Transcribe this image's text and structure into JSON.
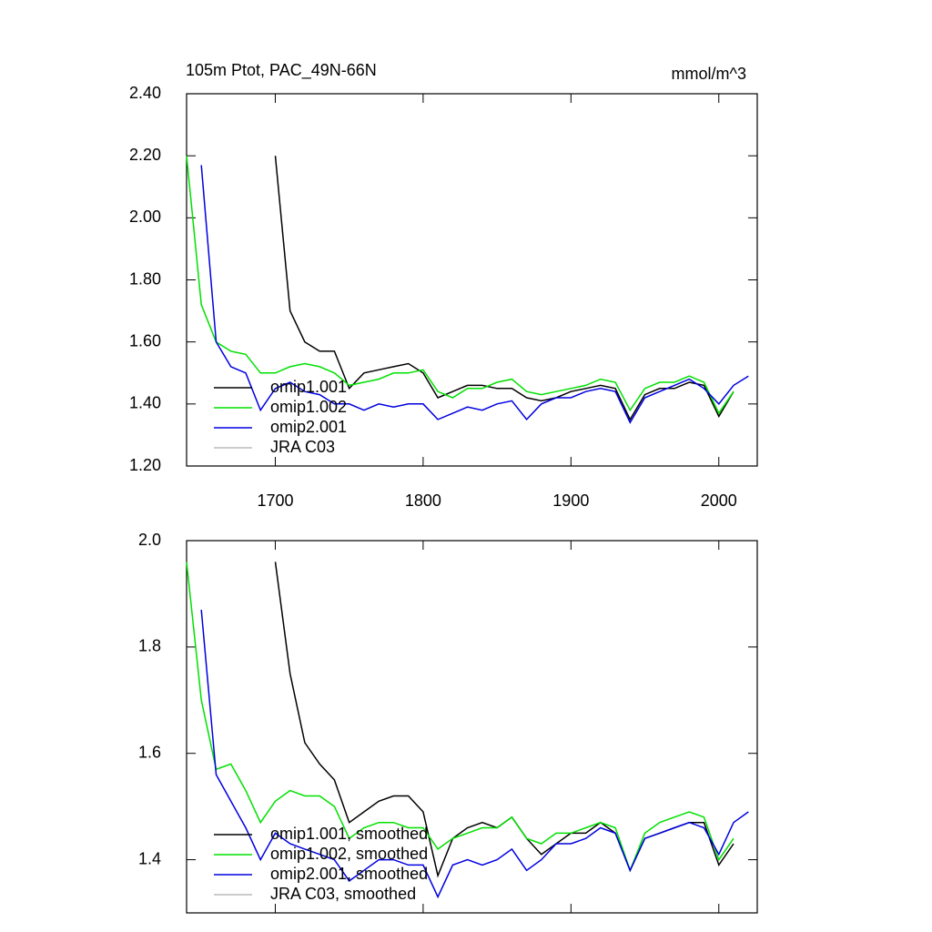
{
  "chart_data": [
    {
      "type": "line",
      "title": "105m Ptot, PAC_49N-66N",
      "y_units": "mmol/m^3",
      "x": [
        1640,
        1650,
        1660,
        1670,
        1680,
        1690,
        1700,
        1710,
        1720,
        1730,
        1740,
        1750,
        1760,
        1770,
        1780,
        1790,
        1800,
        1810,
        1820,
        1830,
        1840,
        1850,
        1860,
        1870,
        1880,
        1890,
        1900,
        1910,
        1920,
        1930,
        1940,
        1950,
        1960,
        1970,
        1980,
        1990,
        2000,
        2010,
        2020
      ],
      "xlim": [
        1640,
        2026
      ],
      "xticks": [
        1700,
        1800,
        1900,
        2000
      ],
      "ylim": [
        1.2,
        2.4
      ],
      "yticks": [
        {
          "value": 1.2,
          "label": "1.20"
        },
        {
          "value": 1.4,
          "label": "1.40"
        },
        {
          "value": 1.6,
          "label": "1.60"
        },
        {
          "value": 1.8,
          "label": "1.80"
        },
        {
          "value": 2.0,
          "label": "2.00"
        },
        {
          "value": 2.2,
          "label": "2.20"
        },
        {
          "value": 2.4,
          "label": "2.40"
        }
      ],
      "legend": "lower left",
      "series": [
        {
          "name": "omip1.001",
          "color": "#000000",
          "values": [
            null,
            null,
            null,
            null,
            null,
            null,
            2.2,
            1.7,
            1.6,
            1.57,
            1.57,
            1.45,
            1.5,
            1.51,
            1.52,
            1.53,
            1.5,
            1.42,
            1.44,
            1.46,
            1.46,
            1.45,
            1.45,
            1.42,
            1.41,
            1.42,
            1.44,
            1.45,
            1.46,
            1.45,
            1.35,
            1.43,
            1.45,
            1.45,
            1.47,
            1.46,
            1.36,
            1.44,
            null
          ]
        },
        {
          "name": "omip1.002",
          "color": "#00e000",
          "values": [
            2.2,
            1.72,
            1.6,
            1.57,
            1.56,
            1.5,
            1.5,
            1.52,
            1.53,
            1.52,
            1.5,
            1.46,
            1.47,
            1.48,
            1.5,
            1.5,
            1.51,
            1.44,
            1.42,
            1.45,
            1.45,
            1.47,
            1.48,
            1.44,
            1.43,
            1.44,
            1.45,
            1.46,
            1.48,
            1.47,
            1.38,
            1.45,
            1.47,
            1.47,
            1.49,
            1.47,
            1.37,
            1.44,
            null
          ]
        },
        {
          "name": "omip2.001",
          "color": "#0000e0",
          "values": [
            null,
            2.17,
            1.6,
            1.52,
            1.5,
            1.38,
            1.45,
            1.47,
            1.44,
            1.43,
            1.4,
            1.4,
            1.38,
            1.4,
            1.39,
            1.4,
            1.4,
            1.35,
            1.37,
            1.39,
            1.38,
            1.4,
            1.41,
            1.35,
            1.4,
            1.42,
            1.42,
            1.44,
            1.45,
            1.44,
            1.34,
            1.42,
            1.44,
            1.46,
            1.48,
            1.45,
            1.4,
            1.46,
            1.49
          ]
        },
        {
          "name": "JRA C03",
          "color": "#bbbbbb",
          "values": [
            null,
            null,
            null,
            null,
            null,
            null,
            null,
            null,
            null,
            null,
            null,
            null,
            null,
            null,
            null,
            null,
            null,
            null,
            null,
            null,
            null,
            null,
            null,
            null,
            null,
            null,
            null,
            null,
            null,
            null,
            null,
            null,
            null,
            null,
            null,
            null,
            null,
            null,
            null
          ]
        }
      ]
    },
    {
      "type": "line",
      "x": [
        1640,
        1650,
        1660,
        1670,
        1680,
        1690,
        1700,
        1710,
        1720,
        1730,
        1740,
        1750,
        1760,
        1770,
        1780,
        1790,
        1800,
        1810,
        1820,
        1830,
        1840,
        1850,
        1860,
        1870,
        1880,
        1890,
        1900,
        1910,
        1920,
        1930,
        1940,
        1950,
        1960,
        1970,
        1980,
        1990,
        2000,
        2010,
        2020
      ],
      "xlim": [
        1640,
        2026
      ],
      "ylim": [
        1.3,
        2.0
      ],
      "yticks": [
        {
          "value": 1.4,
          "label": "1.4"
        },
        {
          "value": 1.6,
          "label": "1.6"
        },
        {
          "value": 1.8,
          "label": "1.8"
        },
        {
          "value": 2.0,
          "label": "2.0"
        }
      ],
      "legend": "lower left",
      "series": [
        {
          "name": "omip1.001, smoothed",
          "color": "#000000",
          "values": [
            null,
            null,
            null,
            null,
            null,
            null,
            1.96,
            1.75,
            1.62,
            1.58,
            1.55,
            1.47,
            1.49,
            1.51,
            1.52,
            1.52,
            1.49,
            1.37,
            1.44,
            1.46,
            1.47,
            1.46,
            1.48,
            1.44,
            1.41,
            1.43,
            1.45,
            1.45,
            1.47,
            1.45,
            1.38,
            1.44,
            1.45,
            1.46,
            1.47,
            1.47,
            1.39,
            1.43,
            null
          ]
        },
        {
          "name": "omip1.002, smoothed",
          "color": "#00e000",
          "values": [
            1.96,
            1.7,
            1.57,
            1.58,
            1.53,
            1.47,
            1.51,
            1.53,
            1.52,
            1.52,
            1.5,
            1.44,
            1.46,
            1.47,
            1.47,
            1.46,
            1.46,
            1.42,
            1.44,
            1.45,
            1.46,
            1.46,
            1.48,
            1.44,
            1.43,
            1.45,
            1.45,
            1.46,
            1.47,
            1.46,
            1.38,
            1.45,
            1.47,
            1.48,
            1.49,
            1.48,
            1.4,
            1.44,
            null
          ]
        },
        {
          "name": "omip2.001, smoothed",
          "color": "#0000e0",
          "values": [
            null,
            1.87,
            1.56,
            1.51,
            1.46,
            1.4,
            1.45,
            1.43,
            1.42,
            1.41,
            1.4,
            1.36,
            1.38,
            1.4,
            1.4,
            1.39,
            1.39,
            1.33,
            1.39,
            1.4,
            1.39,
            1.4,
            1.42,
            1.38,
            1.4,
            1.43,
            1.43,
            1.44,
            1.46,
            1.45,
            1.38,
            1.44,
            1.45,
            1.46,
            1.47,
            1.46,
            1.41,
            1.47,
            1.49
          ]
        },
        {
          "name": "JRA C03, smoothed",
          "color": "#bbbbbb",
          "values": [
            null,
            null,
            null,
            null,
            null,
            null,
            null,
            null,
            null,
            null,
            null,
            null,
            null,
            null,
            null,
            null,
            null,
            null,
            null,
            null,
            null,
            null,
            null,
            null,
            null,
            null,
            null,
            null,
            null,
            null,
            null,
            null,
            null,
            null,
            null,
            null,
            null,
            null,
            null
          ]
        }
      ]
    }
  ]
}
